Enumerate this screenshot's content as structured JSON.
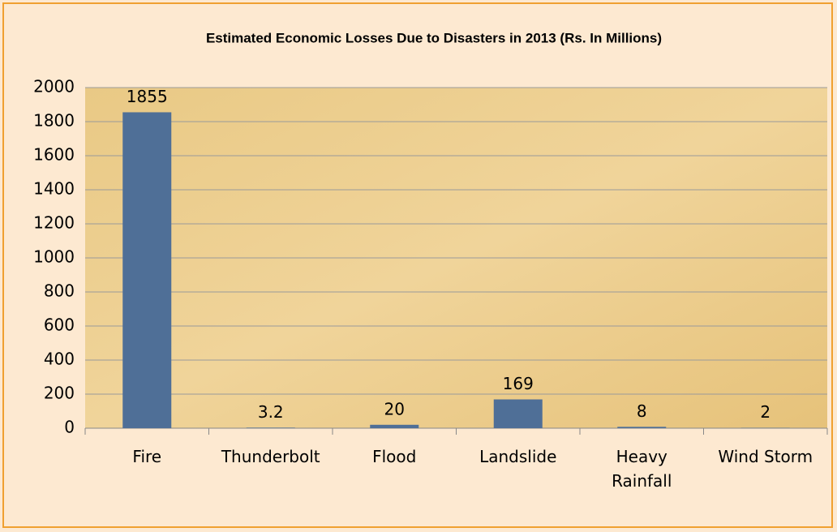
{
  "chart_data": {
    "type": "bar",
    "title": "Estimated Economic Losses Due to Disasters in 2013 (Rs. In Millions)",
    "categories": [
      "Fire",
      "Thunderbolt",
      "Flood",
      "Landslide",
      "Heavy Rainfall",
      "Wind Storm"
    ],
    "values": [
      1855,
      3.2,
      20,
      169,
      8,
      2
    ],
    "color": "#4f6f97",
    "ylim": [
      0,
      2000
    ],
    "yticks": [
      0,
      200,
      400,
      600,
      800,
      1000,
      1200,
      1400,
      1600,
      1800,
      2000
    ],
    "grid": true
  }
}
